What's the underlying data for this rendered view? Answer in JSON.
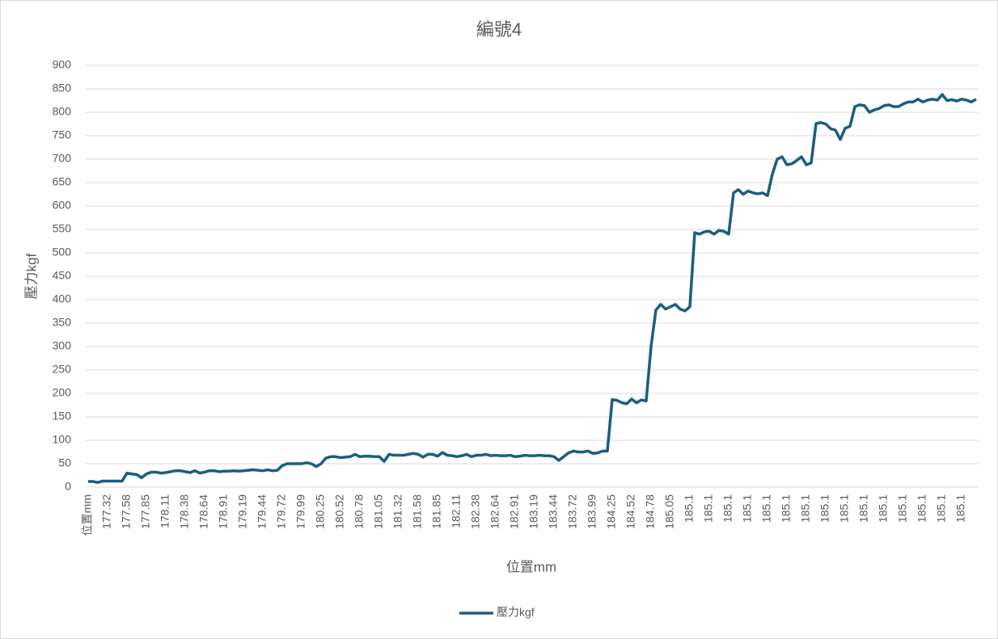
{
  "chart_data": {
    "type": "line",
    "title": "編號4",
    "x_label": "位置mm",
    "y_label": "壓力kgf",
    "categories": [
      "位置mm",
      null,
      null,
      null,
      "177.32",
      null,
      null,
      null,
      "177.58",
      null,
      null,
      null,
      "177.85",
      null,
      null,
      null,
      "178.11",
      null,
      null,
      null,
      "178.38",
      null,
      null,
      null,
      "178.64",
      null,
      null,
      null,
      "178.91",
      null,
      null,
      null,
      "179.19",
      null,
      null,
      null,
      "179.44",
      null,
      null,
      null,
      "179.72",
      null,
      null,
      null,
      "179.99",
      null,
      null,
      null,
      "180.25",
      null,
      null,
      null,
      "180.52",
      null,
      null,
      null,
      "180.78",
      null,
      null,
      null,
      "181.05",
      null,
      null,
      null,
      "181.32",
      null,
      null,
      null,
      "181.58",
      null,
      null,
      null,
      "181.85",
      null,
      null,
      null,
      "182.11",
      null,
      null,
      null,
      "182.38",
      null,
      null,
      null,
      "182.64",
      null,
      null,
      null,
      "182.91",
      null,
      null,
      null,
      "183.19",
      null,
      null,
      null,
      "183.44",
      null,
      null,
      null,
      "183.72",
      null,
      null,
      null,
      "183.99",
      null,
      null,
      null,
      "184.25",
      null,
      null,
      null,
      "184.52",
      null,
      null,
      null,
      "184.78",
      null,
      null,
      null,
      "185.05",
      null,
      null,
      null,
      "185.1",
      null,
      null,
      null,
      "185.1",
      null,
      null,
      null,
      "185.1",
      null,
      null,
      null,
      "185.1",
      null,
      null,
      null,
      "185.1",
      null,
      null,
      null,
      "185.1",
      null,
      null,
      null,
      "185.1",
      null,
      null,
      null,
      "185.1",
      null,
      null,
      null,
      "185.1",
      null,
      null,
      null,
      "185.1",
      null,
      null,
      null,
      "185.1",
      null,
      null,
      null,
      "185.1",
      null,
      null,
      null,
      "185.1",
      null,
      null,
      null,
      "185.1",
      null,
      null,
      null,
      "185.1",
      null,
      null,
      null
    ],
    "series": [
      {
        "name": "壓力kgf",
        "color": "#1a5e80",
        "values": [
          12,
          12,
          10,
          13,
          13,
          13,
          13,
          13,
          30,
          28,
          27,
          20,
          28,
          32,
          32,
          30,
          31,
          33,
          35,
          35,
          33,
          31,
          35,
          30,
          32,
          35,
          35,
          33,
          34,
          34,
          35,
          34,
          35,
          36,
          37,
          36,
          35,
          37,
          35,
          36,
          46,
          50,
          50,
          50,
          50,
          52,
          50,
          44,
          50,
          62,
          65,
          65,
          63,
          64,
          65,
          70,
          65,
          66,
          66,
          65,
          65,
          55,
          70,
          68,
          68,
          68,
          70,
          72,
          70,
          64,
          70,
          70,
          66,
          74,
          68,
          67,
          65,
          67,
          70,
          65,
          68,
          68,
          70,
          67,
          68,
          67,
          67,
          68,
          65,
          66,
          68,
          67,
          67,
          68,
          67,
          67,
          65,
          57,
          65,
          73,
          77,
          75,
          75,
          77,
          72,
          73,
          77,
          77,
          187,
          185,
          180,
          178,
          188,
          180,
          186,
          184,
          300,
          378,
          390,
          380,
          385,
          390,
          380,
          376,
          385,
          543,
          540,
          545,
          546,
          540,
          548,
          546,
          540,
          628,
          635,
          625,
          632,
          628,
          626,
          628,
          622,
          668,
          700,
          705,
          688,
          690,
          697,
          705,
          688,
          692,
          776,
          778,
          775,
          765,
          762,
          742,
          766,
          770,
          812,
          816,
          814,
          800,
          805,
          808,
          814,
          816,
          812,
          812,
          818,
          822,
          822,
          828,
          822,
          826,
          828,
          826,
          838,
          825,
          827,
          824,
          828,
          826,
          822,
          828
        ]
      }
    ],
    "ylim": [
      0,
      900
    ],
    "yticks": [
      0,
      50,
      100,
      150,
      200,
      250,
      300,
      350,
      400,
      450,
      500,
      550,
      600,
      650,
      700,
      750,
      800,
      850,
      900
    ],
    "grid": true,
    "legend": "bottom"
  }
}
